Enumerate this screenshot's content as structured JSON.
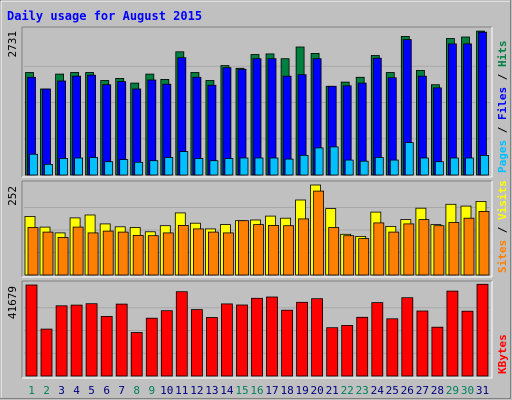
{
  "chart_data": {
    "type": "bar",
    "title": "Daily usage for August 2015",
    "categories": [
      "1",
      "2",
      "3",
      "4",
      "5",
      "6",
      "7",
      "8",
      "9",
      "10",
      "11",
      "12",
      "13",
      "14",
      "15",
      "16",
      "17",
      "18",
      "19",
      "20",
      "21",
      "22",
      "23",
      "24",
      "25",
      "26",
      "27",
      "28",
      "29",
      "30",
      "31"
    ],
    "weekend_days": [
      "1",
      "2",
      "8",
      "9",
      "15",
      "16",
      "22",
      "23",
      "29",
      "30"
    ],
    "colors": {
      "background": "#c0c0c0",
      "title": "#0000ff",
      "hits": "#008040",
      "files": "#0000ff",
      "pages": "#00c0ff",
      "visits": "#ffff00",
      "sites": "#ff8000",
      "kbytes": "#ff0000",
      "weekday_label": "#000080",
      "weekend_label": "#00805c"
    },
    "panels": [
      {
        "id": "top",
        "max_label": "2731",
        "ymax": 2731,
        "legend": [
          {
            "text": "Pages",
            "color": "#00c0ff"
          },
          {
            "text": " / ",
            "color": "#000000"
          },
          {
            "text": "Files",
            "color": "#0000ff"
          },
          {
            "text": " / ",
            "color": "#000000"
          },
          {
            "text": "Hits",
            "color": "#008040"
          }
        ],
        "series": [
          {
            "name": "Hits",
            "color": "#008040",
            "values": [
              1930,
              1620,
              1900,
              1930,
              1930,
              1780,
              1820,
              1730,
              1900,
              1800,
              2320,
              1930,
              1780,
              2060,
              2010,
              2270,
              2280,
              2190,
              2410,
              2290,
              1670,
              1750,
              1840,
              2250,
              1930,
              2610,
              1970,
              1700,
              2570,
              2600,
              2710
            ]
          },
          {
            "name": "Files",
            "color": "#0000ff",
            "values": [
              1840,
              1620,
              1770,
              1860,
              1880,
              1700,
              1760,
              1620,
              1790,
              1710,
              2210,
              1840,
              1690,
              2020,
              1990,
              2190,
              2190,
              1860,
              1890,
              2190,
              1670,
              1680,
              1730,
              2200,
              1830,
              2550,
              1860,
              1640,
              2470,
              2470,
              2690
            ]
          },
          {
            "name": "Pages",
            "color": "#00c0ff",
            "values": [
              390,
              200,
              310,
              320,
              330,
              250,
              290,
              240,
              270,
              330,
              440,
              310,
              270,
              310,
              320,
              320,
              320,
              300,
              370,
              510,
              530,
              280,
              260,
              330,
              280,
              610,
              320,
              250,
              320,
              320,
              370
            ]
          }
        ]
      },
      {
        "id": "middle",
        "max_label": "252",
        "ymax": 252,
        "legend": [
          {
            "text": "Sites",
            "color": "#ff8000"
          },
          {
            "text": " / ",
            "color": "#000000"
          },
          {
            "text": "Visits",
            "color": "#ffff00"
          }
        ],
        "series": [
          {
            "name": "Visits",
            "color": "#ffff00",
            "values": [
              164,
              134,
              118,
              160,
              168,
              143,
              135,
              133,
              121,
              138,
              174,
              145,
              129,
              141,
              152,
              154,
              165,
              159,
              210,
              252,
              186,
              114,
              108,
              176,
              136,
              155,
              187,
              141,
              198,
              193,
              206
            ]
          },
          {
            "name": "Sites",
            "color": "#ff8000",
            "values": [
              133,
              120,
              105,
              134,
              118,
              123,
              120,
              111,
              110,
              118,
              139,
              129,
              120,
              118,
              152,
              141,
              139,
              138,
              157,
              235,
              133,
              110,
              102,
              146,
              120,
              143,
              155,
              138,
              147,
              159,
              178
            ]
          }
        ]
      },
      {
        "id": "bottom",
        "max_label": "41679",
        "ymax": 41679,
        "legend": [
          {
            "text": "KBytes",
            "color": "#ff0000"
          }
        ],
        "series": [
          {
            "name": "KBytes",
            "color": "#ff0000",
            "values": [
              41679,
              21470,
              32170,
              32460,
              33130,
              27300,
              32940,
              19920,
              26480,
              29900,
              38620,
              30400,
              26780,
              33000,
              32500,
              35600,
              36200,
              30160,
              33740,
              35400,
              22100,
              23160,
              26900,
              33610,
              26220,
              35860,
              29750,
              22340,
              38900,
              29700,
              42000
            ]
          }
        ]
      }
    ]
  }
}
